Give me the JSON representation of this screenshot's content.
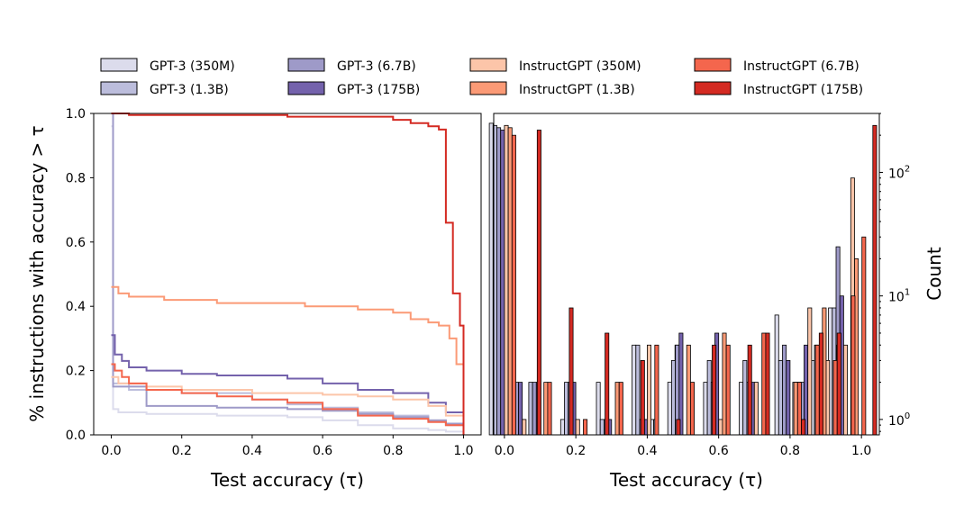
{
  "legend": [
    {
      "name": "GPT-3 (350M)",
      "color": "#dcdcec"
    },
    {
      "name": "GPT-3 (1.3B)",
      "color": "#bcbddc"
    },
    {
      "name": "GPT-3 (6.7B)",
      "color": "#9e9ac8"
    },
    {
      "name": "GPT-3 (175B)",
      "color": "#7462ac"
    },
    {
      "name": "InstructGPT (350M)",
      "color": "#fcc5a9"
    },
    {
      "name": "InstructGPT (1.3B)",
      "color": "#fb9a76"
    },
    {
      "name": "InstructGPT (6.7B)",
      "color": "#f4664d"
    },
    {
      "name": "InstructGPT (175B)",
      "color": "#d42a22"
    }
  ],
  "chart_data": [
    {
      "type": "line",
      "xlabel": "Test accuracy (τ)",
      "ylabel": "% instructions with accuracy > τ",
      "xlim": [
        -0.05,
        1.05
      ],
      "ylim": [
        0,
        1
      ],
      "xticks": [
        "0.0",
        "0.2",
        "0.4",
        "0.6",
        "0.8",
        "1.0"
      ],
      "yticks": [
        "0.0",
        "0.2",
        "0.4",
        "0.6",
        "0.8",
        "1.0"
      ],
      "series": [
        {
          "name": "GPT-3 (350M)",
          "x": [
            0,
            0.005,
            0.02,
            0.1,
            0.3,
            0.5,
            0.6,
            0.7,
            0.8,
            0.9,
            0.95,
            1.0
          ],
          "y": [
            0.96,
            0.08,
            0.07,
            0.065,
            0.06,
            0.055,
            0.045,
            0.03,
            0.02,
            0.015,
            0.01,
            0.0
          ]
        },
        {
          "name": "GPT-3 (1.3B)",
          "x": [
            0,
            0.005,
            0.05,
            0.2,
            0.4,
            0.5,
            0.6,
            0.7,
            0.8,
            0.9,
            0.95,
            1.0
          ],
          "y": [
            1.0,
            0.16,
            0.14,
            0.13,
            0.11,
            0.095,
            0.085,
            0.07,
            0.06,
            0.045,
            0.03,
            0.0
          ]
        },
        {
          "name": "GPT-3 (6.7B)",
          "x": [
            0,
            0.005,
            0.1,
            0.3,
            0.5,
            0.6,
            0.7,
            0.8,
            0.9,
            0.95,
            1.0
          ],
          "y": [
            1.0,
            0.15,
            0.09,
            0.085,
            0.08,
            0.075,
            0.065,
            0.055,
            0.045,
            0.035,
            0.01
          ]
        },
        {
          "name": "GPT-3 (175B)",
          "x": [
            0,
            0.01,
            0.03,
            0.05,
            0.1,
            0.2,
            0.3,
            0.5,
            0.6,
            0.7,
            0.8,
            0.9,
            0.95,
            1.0
          ],
          "y": [
            0.31,
            0.25,
            0.23,
            0.21,
            0.2,
            0.19,
            0.185,
            0.175,
            0.16,
            0.14,
            0.13,
            0.1,
            0.07,
            0.04
          ]
        },
        {
          "name": "InstructGPT (350M)",
          "x": [
            0,
            0.02,
            0.1,
            0.2,
            0.4,
            0.6,
            0.7,
            0.8,
            0.9,
            0.95,
            1.0
          ],
          "y": [
            0.18,
            0.16,
            0.15,
            0.14,
            0.13,
            0.125,
            0.12,
            0.11,
            0.09,
            0.06,
            0.03
          ]
        },
        {
          "name": "InstructGPT (1.3B)",
          "x": [
            0,
            0.02,
            0.05,
            0.15,
            0.3,
            0.55,
            0.7,
            0.8,
            0.85,
            0.9,
            0.93,
            0.96,
            0.98,
            1.0
          ],
          "y": [
            0.46,
            0.44,
            0.43,
            0.42,
            0.41,
            0.4,
            0.39,
            0.38,
            0.36,
            0.35,
            0.34,
            0.3,
            0.22,
            0.0
          ]
        },
        {
          "name": "InstructGPT (6.7B)",
          "x": [
            0,
            0.01,
            0.03,
            0.05,
            0.1,
            0.2,
            0.3,
            0.4,
            0.5,
            0.6,
            0.7,
            0.8,
            0.9,
            0.95,
            1.0
          ],
          "y": [
            0.22,
            0.2,
            0.18,
            0.16,
            0.14,
            0.13,
            0.12,
            0.11,
            0.1,
            0.08,
            0.06,
            0.05,
            0.04,
            0.03,
            0.02
          ]
        },
        {
          "name": "InstructGPT (175B)",
          "x": [
            0,
            0.05,
            0.2,
            0.5,
            0.7,
            0.8,
            0.85,
            0.9,
            0.93,
            0.95,
            0.97,
            0.99,
            1.0
          ],
          "y": [
            1.0,
            0.995,
            0.995,
            0.99,
            0.99,
            0.98,
            0.97,
            0.96,
            0.95,
            0.66,
            0.44,
            0.34,
            0.0
          ]
        }
      ]
    },
    {
      "type": "bar",
      "xlabel": "Test accuracy (τ)",
      "ylabel": "Count",
      "yscale": "log",
      "xlim": [
        -0.03,
        1.05
      ],
      "ylim": [
        0.75,
        300
      ],
      "xticks": [
        "0.0",
        "0.2",
        "0.4",
        "0.6",
        "0.8",
        "1.0"
      ],
      "yticks": [
        "10^0",
        "10^1",
        "10^2"
      ],
      "series": [
        {
          "name": "GPT-3 (350M)",
          "x": [
            0.0,
            0.2,
            0.3,
            0.4,
            0.45,
            0.5,
            0.52,
            0.6,
            0.7,
            0.8,
            0.85,
            0.9,
            0.95
          ],
          "values": [
            250,
            1,
            2,
            4,
            1,
            2,
            4,
            2,
            2,
            7,
            2,
            3,
            8
          ]
        },
        {
          "name": "GPT-3 (1.3B)",
          "x": [
            0.0,
            0.1,
            0.2,
            0.3,
            0.4,
            0.45,
            0.5,
            0.6,
            0.7,
            0.8,
            0.85,
            0.9,
            0.95
          ],
          "values": [
            240,
            2,
            2,
            1,
            4,
            1,
            3,
            3,
            3,
            3,
            2,
            4,
            8
          ]
        },
        {
          "name": "GPT-3 (6.7B)",
          "x": [
            0.0,
            0.05,
            0.1,
            0.2,
            0.3,
            0.4,
            0.5,
            0.6,
            0.7,
            0.75,
            0.8,
            0.85,
            0.9,
            0.95
          ],
          "values": [
            230,
            2,
            2,
            2,
            1,
            1,
            4,
            2,
            2,
            3,
            4,
            2,
            3,
            25
          ]
        },
        {
          "name": "GPT-3 (175B)",
          "x": [
            0.0,
            0.05,
            0.1,
            0.2,
            0.3,
            0.4,
            0.5,
            0.6,
            0.7,
            0.8,
            0.85,
            0.9,
            0.95
          ],
          "values": [
            220,
            2,
            2,
            2,
            1,
            1,
            5,
            5,
            2,
            3,
            4,
            5,
            10
          ]
        },
        {
          "name": "InstructGPT (350M)",
          "x": [
            0.0,
            0.05,
            0.2,
            0.4,
            0.6,
            0.7,
            0.85,
            0.9,
            0.95,
            0.97
          ],
          "values": [
            240,
            1,
            1,
            4,
            1,
            2,
            8,
            3,
            4,
            90
          ]
        },
        {
          "name": "InstructGPT (1.3B)",
          "x": [
            0.0,
            0.1,
            0.3,
            0.5,
            0.6,
            0.8,
            0.88,
            0.92,
            0.97
          ],
          "values": [
            230,
            2,
            2,
            4,
            5,
            2,
            8,
            4,
            20
          ]
        },
        {
          "name": "InstructGPT (6.7B)",
          "x": [
            0.0,
            0.1,
            0.2,
            0.3,
            0.4,
            0.5,
            0.6,
            0.7,
            0.8,
            0.85,
            0.9,
            0.95,
            0.98
          ],
          "values": [
            200,
            2,
            1,
            2,
            4,
            2,
            4,
            5,
            2,
            4,
            3,
            10,
            30
          ]
        },
        {
          "name": "InstructGPT (175B)",
          "x": [
            0.06,
            0.15,
            0.25,
            0.35,
            0.45,
            0.55,
            0.65,
            0.7,
            0.8,
            0.85,
            0.9,
            1.0
          ],
          "values": [
            220,
            8,
            5,
            3,
            1,
            4,
            4,
            5,
            1,
            5,
            5,
            240
          ]
        }
      ]
    }
  ]
}
